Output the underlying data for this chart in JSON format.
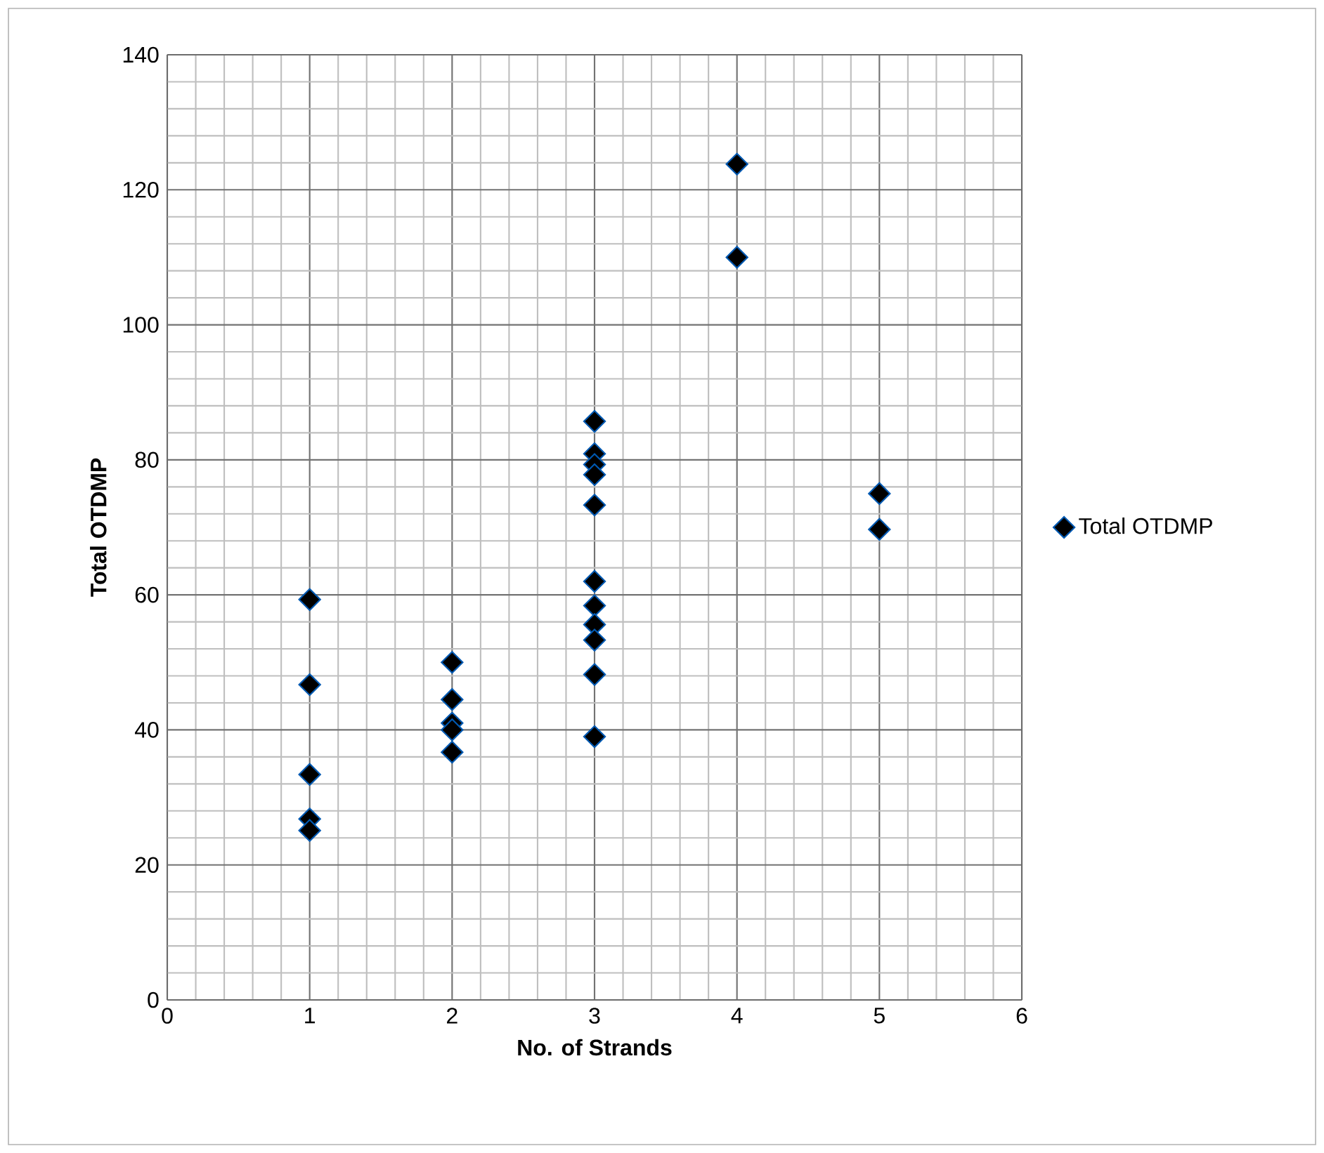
{
  "chart_data": {
    "type": "scatter",
    "xlabel": "No. of Strands",
    "ylabel": "Total OTDMP",
    "series": [
      {
        "name": "Total OTDMP",
        "color": "#000000",
        "x": [
          1,
          1,
          1,
          1,
          1,
          2,
          2,
          2,
          2,
          2,
          3,
          3,
          3,
          3,
          3,
          3,
          3,
          3,
          3,
          3,
          3,
          4,
          4,
          5,
          5
        ],
        "values": [
          59.3,
          46.7,
          33.4,
          26.8,
          25.1,
          50,
          44.5,
          41,
          40,
          36.7,
          85.7,
          80.9,
          79.3,
          77.8,
          73.3,
          62,
          58.4,
          55.6,
          53.3,
          48.2,
          39,
          123.8,
          110,
          75,
          69.7
        ]
      }
    ],
    "xlim": [
      0,
      6
    ],
    "ylim": [
      0,
      140
    ],
    "xticks": [
      0,
      1,
      2,
      3,
      4,
      5,
      6
    ],
    "yticks": [
      0,
      20,
      40,
      60,
      80,
      100,
      120,
      140
    ],
    "grid": true,
    "legend": "right",
    "marker": "diamond"
  }
}
